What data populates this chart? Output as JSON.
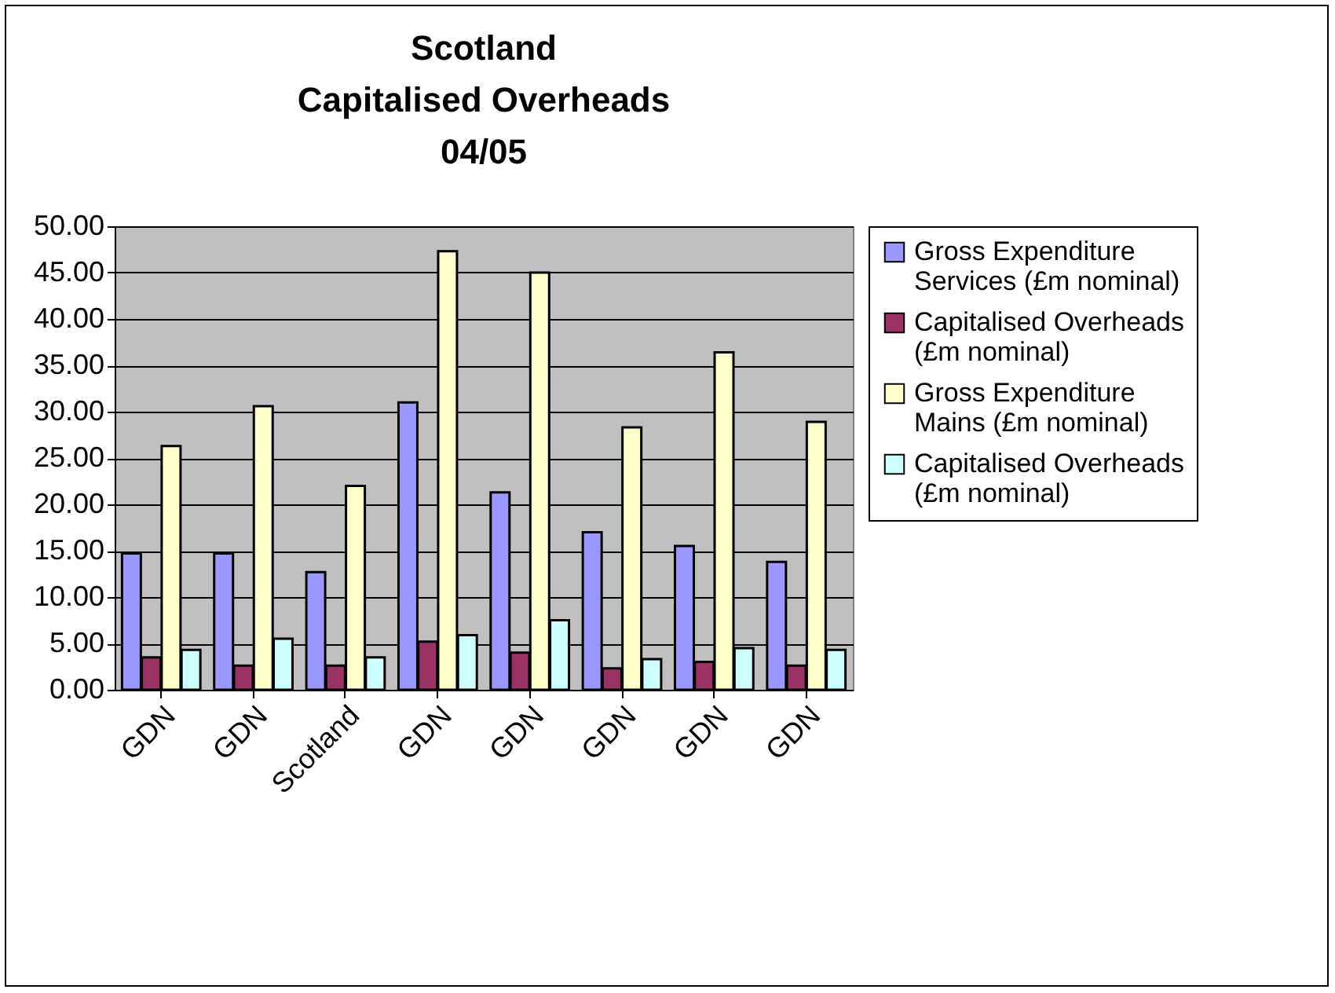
{
  "chart_data": {
    "type": "bar",
    "title": [
      "Scotland",
      "Capitalised Overheads",
      "04/05"
    ],
    "categories": [
      "GDN",
      "GDN",
      "Scotland",
      "GDN",
      "GDN",
      "GDN",
      "GDN",
      "GDN"
    ],
    "series": [
      {
        "name": "Gross Expenditure Services (£m nominal)",
        "color": "#9999ff",
        "values": [
          14.7,
          14.7,
          12.7,
          31.0,
          21.3,
          17.0,
          15.5,
          13.8
        ]
      },
      {
        "name": "Capitalised Overheads (£m nominal)",
        "color": "#993366",
        "values": [
          3.5,
          2.6,
          2.6,
          5.2,
          4.0,
          2.3,
          3.0,
          2.6
        ]
      },
      {
        "name": "Gross Expenditure Mains (£m nominal)",
        "color": "#ffffcc",
        "values": [
          26.3,
          30.6,
          22.0,
          47.3,
          45.0,
          28.3,
          36.4,
          28.9
        ]
      },
      {
        "name": "Capitalised Overheads (£m nominal)",
        "color": "#ccffff",
        "values": [
          4.3,
          5.5,
          3.5,
          5.9,
          7.5,
          3.3,
          4.5,
          4.3
        ]
      }
    ],
    "ylim": [
      0,
      50
    ],
    "yticks": [
      {
        "value": 0,
        "label": "0.00"
      },
      {
        "value": 5,
        "label": "5.00"
      },
      {
        "value": 10,
        "label": "10.00"
      },
      {
        "value": 15,
        "label": "15.00"
      },
      {
        "value": 20,
        "label": "20.00"
      },
      {
        "value": 25,
        "label": "25.00"
      },
      {
        "value": 30,
        "label": "30.00"
      },
      {
        "value": 35,
        "label": "35.00"
      },
      {
        "value": 40,
        "label": "40.00"
      },
      {
        "value": 45,
        "label": "45.00"
      },
      {
        "value": 50,
        "label": "50.00"
      }
    ],
    "grid": "y",
    "legend": "right"
  }
}
